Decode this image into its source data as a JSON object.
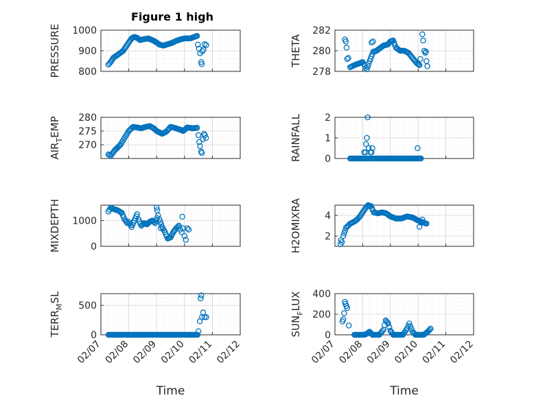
{
  "figure": {
    "title": "Figure 1 high",
    "marker_color": "#0072BD"
  },
  "chart_data": [
    {
      "type": "scatter",
      "ylabel": "PRESSURE",
      "ylabel_sub": "",
      "ylim": [
        800,
        1000
      ],
      "yticks": [
        800,
        900,
        1000
      ],
      "xlim": [
        0,
        5
      ],
      "grid": true,
      "anchors": [
        [
          0.27,
          833
        ],
        [
          0.35,
          845
        ],
        [
          0.45,
          866
        ],
        [
          0.6,
          880
        ],
        [
          0.8,
          900
        ],
        [
          0.9,
          920
        ],
        [
          1.0,
          940
        ],
        [
          1.1,
          960
        ],
        [
          1.2,
          967
        ],
        [
          1.3,
          963
        ],
        [
          1.4,
          952
        ],
        [
          1.5,
          955
        ],
        [
          1.7,
          960
        ],
        [
          1.9,
          948
        ],
        [
          2.0,
          940
        ],
        [
          2.1,
          930
        ],
        [
          2.25,
          925
        ],
        [
          2.4,
          932
        ],
        [
          2.55,
          938
        ],
        [
          2.7,
          948
        ],
        [
          2.85,
          955
        ],
        [
          3.0,
          960
        ],
        [
          3.2,
          960
        ],
        [
          3.35,
          967
        ],
        [
          3.45,
          972
        ]
      ],
      "extra": [
        [
          3.48,
          930
        ],
        [
          3.52,
          910
        ],
        [
          3.56,
          888
        ],
        [
          3.6,
          845
        ],
        [
          3.62,
          835
        ],
        [
          3.64,
          898
        ],
        [
          3.68,
          905
        ],
        [
          3.72,
          932
        ],
        [
          3.78,
          928
        ]
      ]
    },
    {
      "type": "scatter",
      "ylabel": "THETA",
      "ylabel_sub": "",
      "ylim": [
        278,
        282
      ],
      "yticks": [
        278,
        280,
        282
      ],
      "xlim": [
        0,
        5
      ],
      "grid": true,
      "anchors": [
        [
          0.55,
          278.4
        ],
        [
          0.7,
          278.6
        ],
        [
          0.9,
          278.8
        ],
        [
          1.0,
          278.9
        ],
        [
          1.08,
          278.5
        ],
        [
          1.15,
          278.2
        ],
        [
          1.25,
          279.0
        ],
        [
          1.38,
          279.9
        ],
        [
          1.5,
          280.0
        ],
        [
          1.6,
          280.2
        ],
        [
          1.75,
          280.5
        ],
        [
          1.9,
          280.6
        ],
        [
          2.0,
          280.9
        ],
        [
          2.1,
          281.0
        ],
        [
          2.2,
          280.3
        ],
        [
          2.35,
          280.0
        ],
        [
          2.5,
          280.0
        ],
        [
          2.65,
          279.8
        ],
        [
          2.8,
          279.3
        ],
        [
          2.95,
          278.8
        ],
        [
          3.05,
          278.6
        ]
      ],
      "extra": [
        [
          0.36,
          281.1
        ],
        [
          0.39,
          280.9
        ],
        [
          0.42,
          280.3
        ],
        [
          0.44,
          279.2
        ],
        [
          0.48,
          279.3
        ],
        [
          1.32,
          280.8
        ],
        [
          1.37,
          280.9
        ],
        [
          3.08,
          279.2
        ],
        [
          3.15,
          281.6
        ],
        [
          3.18,
          281.0
        ],
        [
          3.22,
          280.0
        ],
        [
          3.26,
          279.8
        ],
        [
          3.3,
          279.0
        ],
        [
          3.33,
          278.5
        ],
        [
          3.28,
          279.9
        ]
      ]
    },
    {
      "type": "scatter",
      "ylabel": "AIR",
      "ylabel_sub": "T",
      "ylabel_tail": "EMP",
      "ylim": [
        265,
        280
      ],
      "yticks": [
        270,
        275,
        280
      ],
      "xlim": [
        0,
        5
      ],
      "grid": true,
      "anchors": [
        [
          0.27,
          266.5
        ],
        [
          0.35,
          266
        ],
        [
          0.5,
          268
        ],
        [
          0.7,
          270
        ],
        [
          0.85,
          272.5
        ],
        [
          1.0,
          275
        ],
        [
          1.15,
          276.5
        ],
        [
          1.3,
          276.3
        ],
        [
          1.45,
          276
        ],
        [
          1.6,
          276.5
        ],
        [
          1.75,
          276.8
        ],
        [
          1.9,
          276.0
        ],
        [
          2.0,
          275.0
        ],
        [
          2.1,
          274.5
        ],
        [
          2.2,
          274.0
        ],
        [
          2.35,
          274.8
        ],
        [
          2.5,
          276.5
        ],
        [
          2.6,
          276.3
        ],
        [
          2.75,
          275.8
        ],
        [
          2.85,
          275.5
        ],
        [
          2.95,
          275.0
        ],
        [
          3.1,
          276.3
        ],
        [
          3.3,
          276.0
        ],
        [
          3.45,
          276.2
        ]
      ],
      "extra": [
        [
          3.5,
          273.5
        ],
        [
          3.53,
          271
        ],
        [
          3.56,
          269.5
        ],
        [
          3.6,
          267.5
        ],
        [
          3.62,
          267
        ],
        [
          3.66,
          272
        ],
        [
          3.7,
          274
        ],
        [
          3.73,
          273.5
        ],
        [
          3.77,
          272.5
        ]
      ]
    },
    {
      "type": "scatter",
      "ylabel": "RAINFALL",
      "ylabel_sub": "",
      "ylim": [
        0,
        2
      ],
      "yticks": [
        0,
        1,
        2
      ],
      "xlim": [
        0,
        5
      ],
      "grid": true,
      "anchors": [
        [
          0.55,
          0
        ],
        [
          1.05,
          0
        ],
        [
          1.15,
          0
        ],
        [
          1.25,
          0
        ],
        [
          1.3,
          0
        ],
        [
          1.4,
          0
        ],
        [
          3.1,
          0
        ]
      ],
      "extra": [
        [
          1.05,
          0.3
        ],
        [
          1.1,
          0.3
        ],
        [
          1.12,
          0.7
        ],
        [
          1.15,
          1.0
        ],
        [
          1.18,
          2.0
        ],
        [
          1.22,
          0.5
        ],
        [
          1.28,
          0.3
        ],
        [
          1.32,
          0.3
        ],
        [
          1.35,
          0.5
        ],
        [
          2.98,
          0.5
        ]
      ]
    },
    {
      "type": "scatter",
      "ylabel": "MIXDEPTH",
      "ylabel_sub": "",
      "ylim": [
        0,
        1600
      ],
      "yticks": [
        0,
        1000
      ],
      "xlim": [
        0,
        5
      ],
      "grid": true,
      "anchors": [
        [
          0.27,
          1350
        ],
        [
          0.35,
          1500
        ],
        [
          0.45,
          1450
        ],
        [
          0.6,
          1400
        ],
        [
          0.75,
          1300
        ],
        [
          0.85,
          1050
        ],
        [
          0.95,
          900
        ],
        [
          1.0,
          950
        ],
        [
          1.1,
          750
        ],
        [
          1.2,
          1000
        ],
        [
          1.3,
          1250
        ],
        [
          1.35,
          1050
        ],
        [
          1.45,
          800
        ],
        [
          1.55,
          900
        ],
        [
          1.65,
          850
        ],
        [
          1.75,
          950
        ],
        [
          1.85,
          1000
        ],
        [
          1.95,
          900
        ],
        [
          2.05,
          1200
        ],
        [
          2.1,
          1050
        ],
        [
          2.2,
          750
        ],
        [
          2.3,
          550
        ],
        [
          2.4,
          300
        ],
        [
          2.5,
          350
        ],
        [
          2.6,
          550
        ],
        [
          2.7,
          700
        ],
        [
          2.8,
          800
        ],
        [
          2.85,
          650
        ],
        [
          2.9,
          550
        ]
      ],
      "extra": [
        [
          2.0,
          1500
        ],
        [
          2.02,
          1400
        ],
        [
          2.15,
          700
        ],
        [
          2.92,
          1150
        ],
        [
          2.95,
          700
        ],
        [
          3.0,
          400
        ],
        [
          3.05,
          250
        ],
        [
          3.1,
          700
        ],
        [
          3.15,
          650
        ]
      ]
    },
    {
      "type": "scatter",
      "ylabel": "H2OMIXRA",
      "ylabel_sub": "",
      "ylim": [
        1,
        5
      ],
      "yticks": [
        2,
        4
      ],
      "xlim": [
        0,
        5
      ],
      "grid": true,
      "anchors": [
        [
          0.2,
          1.2
        ],
        [
          0.25,
          1.4
        ],
        [
          0.3,
          2.0
        ],
        [
          0.4,
          2.8
        ],
        [
          0.55,
          3.2
        ],
        [
          0.7,
          3.4
        ],
        [
          0.8,
          3.6
        ],
        [
          0.9,
          3.9
        ],
        [
          1.0,
          4.3
        ],
        [
          1.1,
          4.7
        ],
        [
          1.2,
          5.0
        ],
        [
          1.3,
          4.9
        ],
        [
          1.4,
          4.3
        ],
        [
          1.55,
          4.2
        ],
        [
          1.7,
          4.3
        ],
        [
          1.85,
          4.2
        ],
        [
          2.0,
          3.9
        ],
        [
          2.2,
          3.7
        ],
        [
          2.4,
          3.7
        ],
        [
          2.6,
          3.9
        ],
        [
          2.8,
          3.8
        ],
        [
          3.0,
          3.5
        ],
        [
          3.3,
          3.2
        ]
      ],
      "extra": [
        [
          0.22,
          1.6
        ],
        [
          3.05,
          2.9
        ],
        [
          3.1,
          3.3
        ],
        [
          3.15,
          3.6
        ]
      ]
    },
    {
      "type": "scatter",
      "ylabel": "TERR",
      "ylabel_sub": "M",
      "ylabel_tail": "SL",
      "ylim": [
        0,
        700
      ],
      "yticks": [
        0,
        500
      ],
      "xlim": [
        0,
        5
      ],
      "grid": true,
      "xticks": [
        "02/07",
        "02/08",
        "02/09",
        "02/10",
        "02/11",
        "02/12"
      ],
      "xlabel": "Time",
      "anchors": [
        [
          0.27,
          0
        ],
        [
          1.0,
          0
        ],
        [
          2.0,
          0
        ],
        [
          3.0,
          0
        ],
        [
          3.47,
          0
        ]
      ],
      "extra": [
        [
          3.5,
          60
        ],
        [
          3.55,
          230
        ],
        [
          3.58,
          620
        ],
        [
          3.6,
          670
        ],
        [
          3.63,
          300
        ],
        [
          3.67,
          380
        ],
        [
          3.72,
          300
        ],
        [
          3.78,
          300
        ]
      ]
    },
    {
      "type": "scatter",
      "ylabel": "SUN",
      "ylabel_sub": "F",
      "ylabel_tail": "LUX",
      "ylim": [
        0,
        400
      ],
      "yticks": [
        0,
        200,
        400
      ],
      "xlim": [
        0,
        5
      ],
      "grid": true,
      "xticks": [
        "02/07",
        "02/08",
        "02/09",
        "02/10",
        "02/11",
        "02/12"
      ],
      "xlabel": "Time",
      "anchors": [
        [
          0.7,
          0
        ],
        [
          1.05,
          0
        ],
        [
          1.15,
          10
        ],
        [
          1.25,
          30
        ],
        [
          1.35,
          0
        ],
        [
          1.6,
          0
        ],
        [
          1.75,
          50
        ],
        [
          1.83,
          140
        ],
        [
          1.92,
          110
        ],
        [
          2.0,
          40
        ],
        [
          2.1,
          0
        ],
        [
          2.45,
          0
        ],
        [
          2.6,
          60
        ],
        [
          2.68,
          110
        ],
        [
          2.8,
          30
        ],
        [
          2.9,
          0
        ],
        [
          3.2,
          0
        ],
        [
          3.35,
          30
        ],
        [
          3.45,
          60
        ]
      ],
      "extra": [
        [
          0.27,
          130
        ],
        [
          0.3,
          150
        ],
        [
          0.33,
          210
        ],
        [
          0.36,
          320
        ],
        [
          0.38,
          300
        ],
        [
          0.41,
          280
        ],
        [
          0.44,
          260
        ],
        [
          0.5,
          90
        ]
      ]
    }
  ]
}
